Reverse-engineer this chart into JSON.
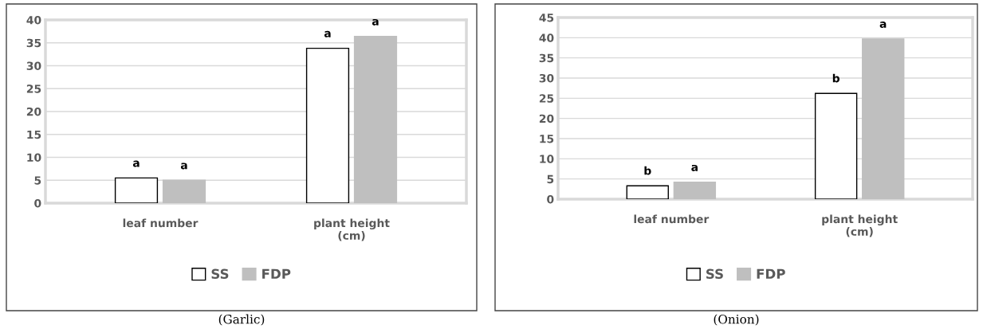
{
  "chart_data": [
    {
      "type": "bar",
      "categories": [
        "leaf number",
        "plant height\n(cm)"
      ],
      "ylim": [
        0,
        40
      ],
      "yticks": [
        0,
        5,
        10,
        15,
        20,
        25,
        30,
        35,
        40
      ],
      "grid": "y",
      "legend": "bottom",
      "series": [
        {
          "name": "SS",
          "color": "#ffffff",
          "values": [
            5.5,
            33.8
          ],
          "value_labels": [
            "a",
            "a"
          ]
        },
        {
          "name": "FDP",
          "color": "#bfbfbf",
          "values": [
            5.0,
            36.4
          ],
          "value_labels": [
            "a",
            "a"
          ]
        }
      ],
      "annotations": [
        "(Garlic)"
      ]
    },
    {
      "type": "bar",
      "categories": [
        "leaf number",
        "plant height\n(cm)"
      ],
      "ylim": [
        0,
        45
      ],
      "yticks": [
        0,
        5,
        10,
        15,
        20,
        25,
        30,
        35,
        40,
        45
      ],
      "grid": "y",
      "legend": "bottom",
      "series": [
        {
          "name": "SS",
          "color": "#ffffff",
          "values": [
            3.3,
            26.2
          ],
          "value_labels": [
            "b",
            "b"
          ]
        },
        {
          "name": "FDP",
          "color": "#bfbfbf",
          "values": [
            4.2,
            39.7
          ],
          "value_labels": [
            "a",
            "a"
          ]
        }
      ],
      "annotations": [
        "(Onion)"
      ]
    }
  ]
}
